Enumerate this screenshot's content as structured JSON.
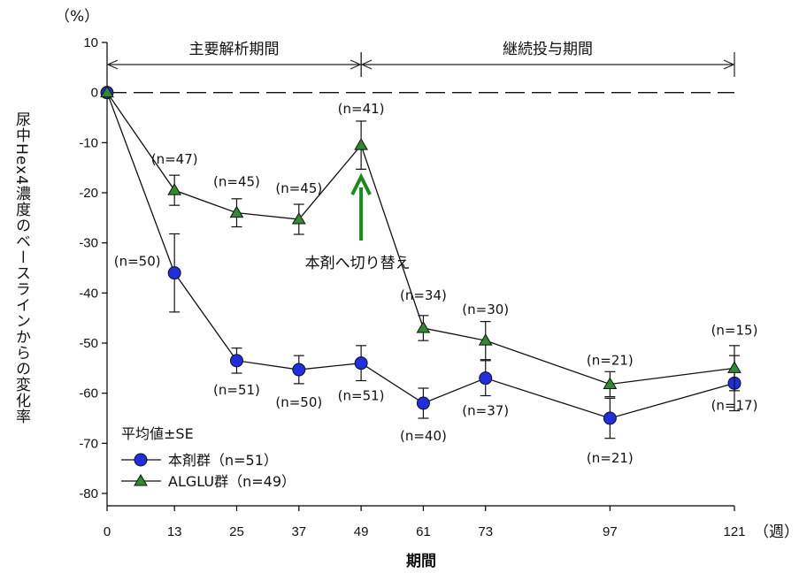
{
  "chart_data": {
    "type": "line",
    "yunit": "（%）",
    "xunit": "（週）",
    "xlabel": "期間",
    "ylabel": "尿中Hex4濃度のベースラインからの変化率",
    "ylim": [
      -80,
      10
    ],
    "yticks": [
      10,
      0,
      -10,
      -20,
      -30,
      -40,
      -50,
      -60,
      -70,
      -80
    ],
    "x": [
      0,
      13,
      25,
      37,
      49,
      61,
      73,
      97,
      121
    ],
    "xtick_labels": [
      "0",
      "13",
      "25",
      "37",
      "49",
      "61",
      "73",
      "97",
      "121"
    ],
    "reference_line": 0,
    "periods": [
      {
        "label": "主要解析期間",
        "start": 0,
        "end": 49
      },
      {
        "label": "継続投与期間",
        "start": 49,
        "end": 121
      }
    ],
    "annotation": {
      "text": "本剤へ切り替え",
      "x": 49,
      "color": "#1a8a1a"
    },
    "legend_title": "平均値±SE",
    "series": [
      {
        "name": "本剤群（n=51）",
        "marker": "circle",
        "color": "#1f2ee0",
        "values": [
          0,
          -36,
          -53.5,
          -55.3,
          -54,
          -62,
          -57,
          -65,
          -58
        ],
        "err": [
          0,
          7.8,
          2.5,
          2.8,
          3.5,
          3.0,
          3.5,
          4.0,
          5.5
        ],
        "n_labels": [
          "",
          "(n=50)",
          "(n=51)",
          "(n=50)",
          "(n=51)",
          "(n=40)",
          "(n=37)",
          "(n=21)",
          "(n=17)"
        ]
      },
      {
        "name": "ALGLU群（n=49）",
        "marker": "triangle",
        "color": "#2e8b2e",
        "values": [
          0,
          -19.5,
          -24,
          -25.3,
          -10.5,
          -47,
          -49.5,
          -58.2,
          -55
        ],
        "err": [
          0,
          3.0,
          2.8,
          3.0,
          4.8,
          2.5,
          3.8,
          2.5,
          4.5
        ],
        "n_labels": [
          "",
          "(n=47)",
          "(n=45)",
          "(n=45)",
          "(n=41)",
          "(n=34)",
          "(n=30)",
          "(n=21)",
          "(n=15)"
        ]
      }
    ]
  }
}
